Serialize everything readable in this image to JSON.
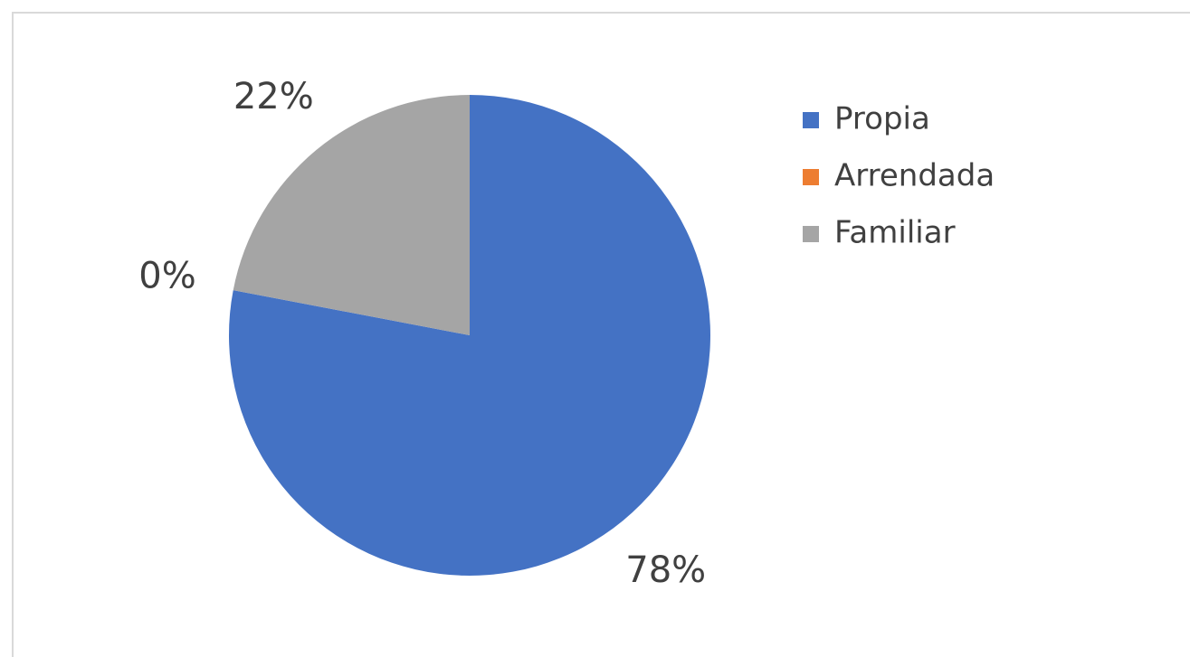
{
  "chart_data": {
    "type": "pie",
    "categories": [
      "Propia",
      "Arrendada",
      "Familiar"
    ],
    "values": [
      78,
      0,
      22
    ],
    "value_labels": [
      "78%",
      "0%",
      "22%"
    ],
    "colors": [
      "#4472c4",
      "#ed7d31",
      "#a5a5a5"
    ],
    "legend": "right"
  }
}
